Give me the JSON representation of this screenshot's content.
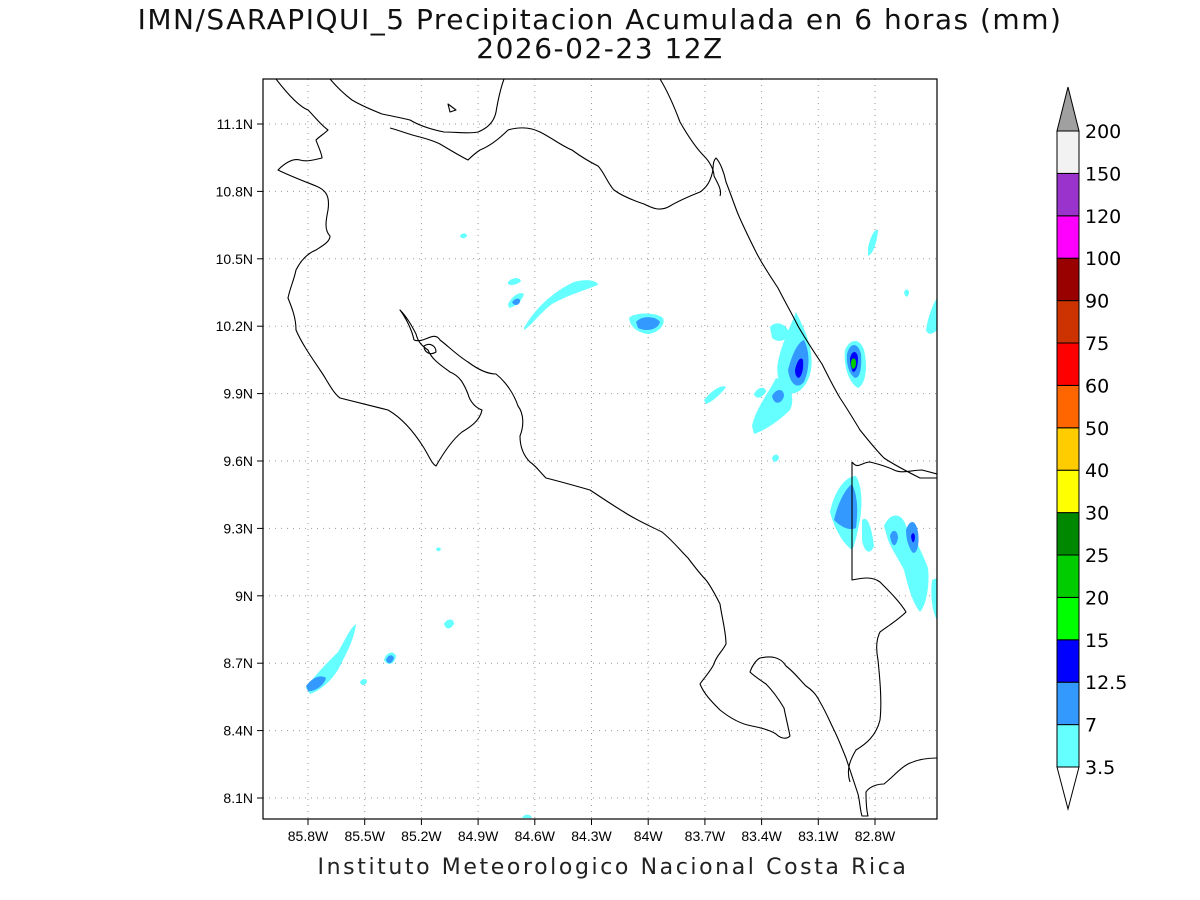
{
  "title": {
    "line1": "IMN/SARAPIQUI_5 Precipitacion Acumulada en 6 horas (mm)",
    "line2": "2026-02-23 12Z"
  },
  "footer": "Instituto Meteorologico Nacional Costa Rica",
  "map": {
    "lon_ticks": [
      "85.8W",
      "85.5W",
      "85.2W",
      "84.9W",
      "84.6W",
      "84.3W",
      "84W",
      "83.7W",
      "83.4W",
      "83.1W",
      "82.8W"
    ],
    "lat_ticks": [
      "11.1N",
      "10.8N",
      "10.5N",
      "10.2N",
      "9.9N",
      "9.6N",
      "9.3N",
      "9N",
      "8.7N",
      "8.4N",
      "8.1N"
    ],
    "grid": "dotted"
  },
  "colorbar": {
    "labels": [
      "3.5",
      "7",
      "12.5",
      "15",
      "20",
      "25",
      "30",
      "40",
      "50",
      "60",
      "75",
      "90",
      "100",
      "120",
      "150",
      "200"
    ],
    "colors": [
      "#66ffff",
      "#3399ff",
      "#0000ff",
      "#00ff00",
      "#00cc00",
      "#008800",
      "#ffff00",
      "#ffcc00",
      "#ff6600",
      "#ff0000",
      "#cc3300",
      "#990000",
      "#ff00ff",
      "#9933cc",
      "#f2f2f2"
    ],
    "over_color": "#a0a0a0",
    "under_color": "#ffffff"
  }
}
